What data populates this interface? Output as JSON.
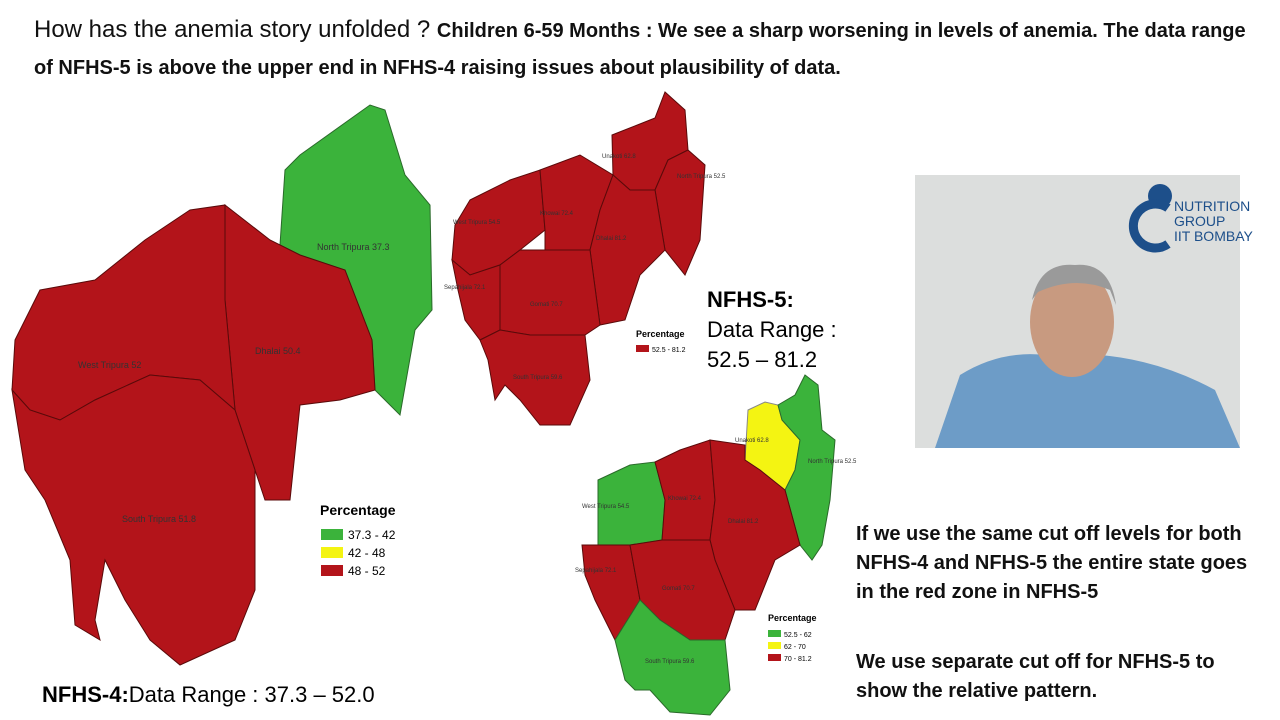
{
  "header": {
    "question": "How has the anemia story unfolded ?",
    "statement": "Children 6-59 Months : We see a sharp worsening in levels of anemia.  The data range of NFHS-5 is above the upper end in NFHS-4 raising issues about plausibility of data."
  },
  "nfhs4_map": {
    "districts": [
      "North Tripura 37.3",
      "West Tripura 52",
      "Dhalai 50.4",
      "South Tripura 51.8"
    ],
    "legend": {
      "title": "Percentage",
      "items": [
        "37.3 - 42",
        "42 - 48",
        "48 - 52"
      ]
    },
    "caption": {
      "label": "NFHS-4:",
      "range": "Data Range : 37.3 – 52.0"
    }
  },
  "nfhs5_map": {
    "districts": [
      "Unakoti 62.8",
      "North Tripura 52.5",
      "West Tripura 54.5",
      "Khowai 72.4",
      "Dhalai 81.2",
      "Sepahijala 72.1",
      "Gomati 70.7",
      "South Tripura 59.6"
    ],
    "legend": {
      "title": "Percentage",
      "items": [
        "52.5 - 81.2"
      ]
    },
    "caption": {
      "label": "NFHS-5:",
      "range_label": "Data Range :",
      "range": "52.5 – 81.2"
    }
  },
  "nfhs5_relative_map": {
    "districts": [
      "Unakoti 62.8",
      "North Tripura 52.5",
      "West Tripura 54.5",
      "Khowai 72.4",
      "Dhalai 81.2",
      "Sepahijala 72.1",
      "Gomati 70.7",
      "South Tripura 59.6"
    ],
    "legend": {
      "title": "Percentage",
      "items": [
        "52.5 - 62",
        "62 - 70",
        "70 - 81.2"
      ]
    }
  },
  "notes": [
    "If we use the same cut off levels for both NFHS-4 and NFHS-5 the entire state goes in the red zone in NFHS-5",
    "We use separate cut off for NFHS-5 to show the relative pattern."
  ],
  "video": {
    "logo": [
      "NUTRITION",
      "GROUP",
      "IIT BOMBAY"
    ]
  }
}
